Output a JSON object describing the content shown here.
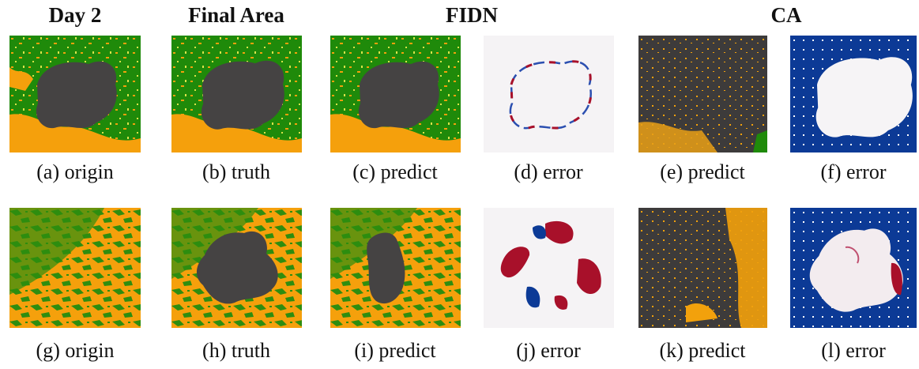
{
  "headers": [
    "Day 2",
    "Final Area",
    "FIDN",
    "CA"
  ],
  "captions": [
    [
      "(a) origin",
      "(b) truth",
      "(c) predict",
      "(d) error",
      "(e) predict",
      "(f) error"
    ],
    [
      "(g) origin",
      "(h) truth",
      "(i) predict",
      "(j) error",
      "(k) predict",
      "(l) error"
    ]
  ]
}
